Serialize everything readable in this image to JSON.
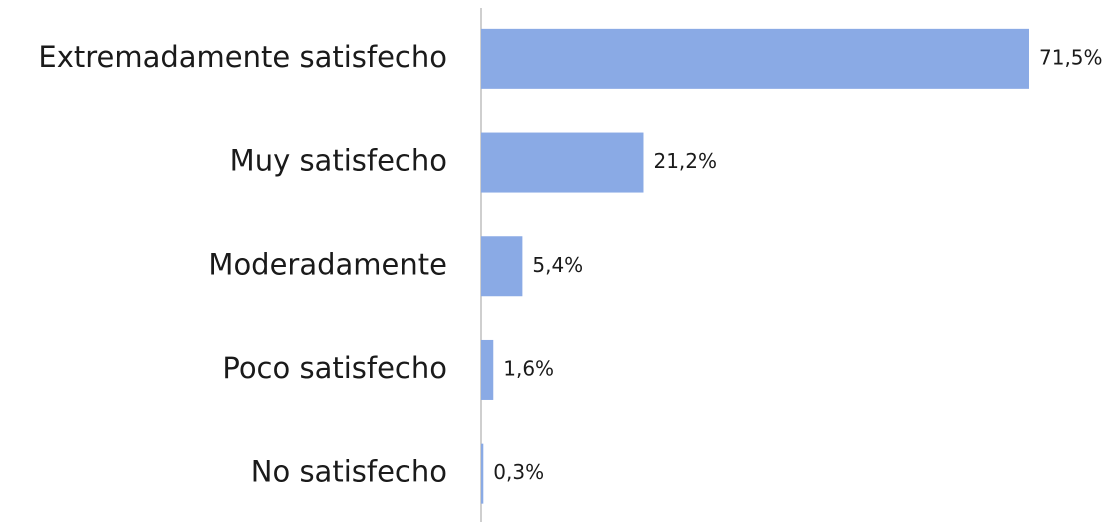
{
  "chart_data": {
    "type": "bar",
    "orientation": "horizontal",
    "categories": [
      "Extremadamente satisfecho",
      "Muy satisfecho",
      "Moderadamente",
      "Poco satisfecho",
      "No satisfecho"
    ],
    "values": [
      71.5,
      21.2,
      5.4,
      1.6,
      0.3
    ],
    "value_labels": [
      "71,5%",
      "21,2%",
      "5,4%",
      "1,6%",
      "0,3%"
    ],
    "color": "#8aaae5"
  }
}
